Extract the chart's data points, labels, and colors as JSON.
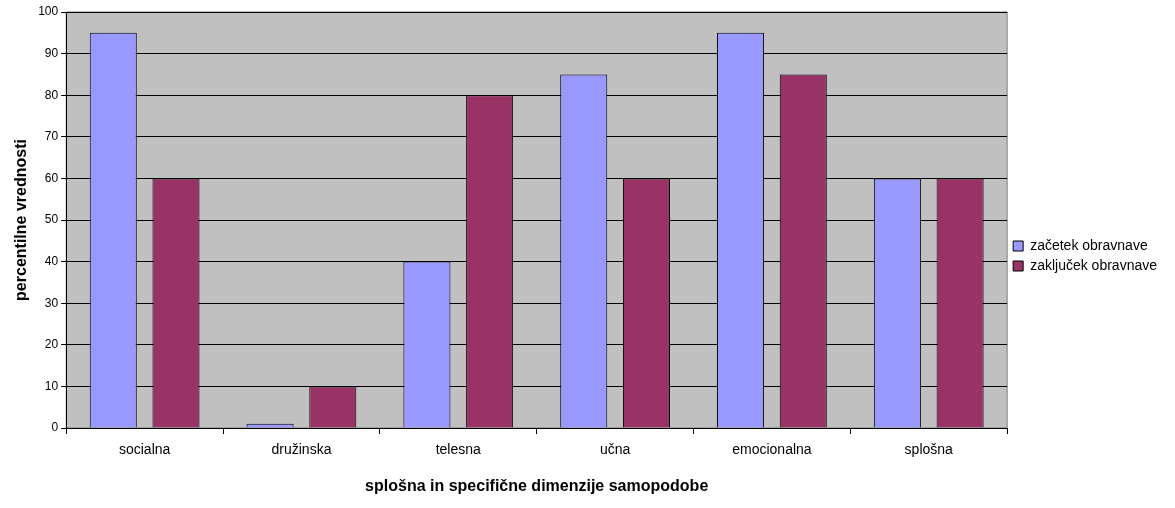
{
  "chart_data": {
    "type": "bar",
    "xlabel": "splošna in specifične dimenzije samopodobe",
    "ylabel": "percentilne vrednosti",
    "categories": [
      "socialna",
      "družinska",
      "telesna",
      "učna",
      "emocionalna",
      "splošna"
    ],
    "series": [
      {
        "name": "začetek obravnave",
        "color": "#9999ff",
        "values": [
          95,
          1,
          40,
          85,
          95,
          60
        ]
      },
      {
        "name": "zaključek obravnave",
        "color": "#993366",
        "values": [
          60,
          10,
          80,
          60,
          85,
          60
        ]
      }
    ],
    "ylim": [
      0,
      100
    ],
    "yticks": [
      0,
      10,
      20,
      30,
      40,
      50,
      60,
      70,
      80,
      90,
      100
    ],
    "grid": "y",
    "legend": "right"
  }
}
